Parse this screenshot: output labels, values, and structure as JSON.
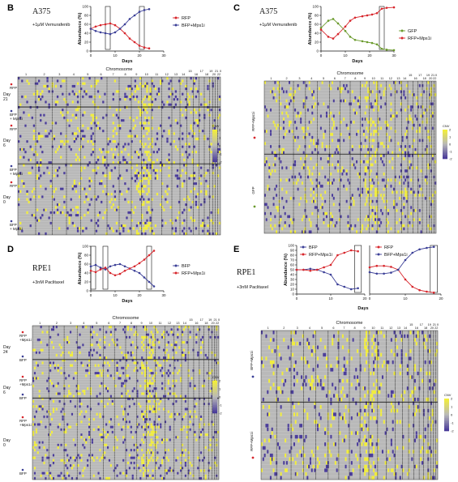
{
  "colors": {
    "red": "#d7262c",
    "blue": "#3b3f97",
    "green": "#6a9a2c",
    "heat_base": "#b9b9b9",
    "heat_high": "#f2ee3a",
    "heat_low": "#4a3c9a"
  },
  "chromosome_title": "Chromosome",
  "chromosome_labels": [
    "1",
    "2",
    "3",
    "4",
    "5",
    "6",
    "7",
    "8",
    "9",
    "10",
    "11",
    "12",
    "13",
    "14",
    "15",
    "16",
    "17",
    "18",
    "19",
    "20",
    "21",
    "22",
    "X"
  ],
  "colorbar": {
    "title": "CNV",
    "ticks": [
      "2",
      "1",
      "0",
      "-1",
      "-2"
    ]
  },
  "chart_data": [
    {
      "panel": "B",
      "type": "line",
      "cell_line": "A375",
      "treatment": "+1μM Vemurafenib",
      "xlabel": "Days",
      "ylabel": "Abundance (%)",
      "xlim": [
        0,
        30
      ],
      "ylim": [
        0,
        100
      ],
      "xticks": [
        "0",
        "10",
        "20",
        "30"
      ],
      "yticks": [
        "0",
        "20",
        "40",
        "60",
        "80",
        "100"
      ],
      "legend_position": "right",
      "series": [
        {
          "name": "RFP",
          "color": "#d7262c",
          "x": [
            0,
            2,
            4,
            6,
            8,
            10,
            12,
            14,
            16,
            18,
            20,
            22,
            24
          ],
          "y": [
            50,
            55,
            58,
            60,
            62,
            58,
            50,
            40,
            28,
            20,
            12,
            8,
            6
          ]
        },
        {
          "name": "BFP+Mps1i",
          "color": "#3b3f97",
          "x": [
            0,
            2,
            4,
            6,
            8,
            10,
            12,
            14,
            16,
            18,
            20,
            22,
            24
          ],
          "y": [
            50,
            45,
            42,
            40,
            38,
            42,
            50,
            60,
            72,
            80,
            88,
            92,
            94
          ]
        }
      ],
      "boxes": [
        {
          "x": [
            6,
            8
          ]
        },
        {
          "x": [
            20,
            22
          ]
        }
      ]
    },
    {
      "panel": "C",
      "type": "line",
      "cell_line": "A375",
      "treatment": "+1μM Vemurafenib",
      "xlabel": "Days",
      "ylabel": "Abundance (%)",
      "xlim": [
        0,
        30
      ],
      "ylim": [
        0,
        100
      ],
      "xticks": [
        "0",
        "10",
        "20",
        "30"
      ],
      "yticks": [
        "0",
        "20",
        "40",
        "60",
        "80",
        "100"
      ],
      "legend_position": "right",
      "series": [
        {
          "name": "GFP",
          "color": "#6a9a2c",
          "x": [
            0,
            3,
            5,
            7,
            10,
            12,
            14,
            17,
            19,
            21,
            23,
            25,
            27,
            30
          ],
          "y": [
            52,
            68,
            72,
            62,
            45,
            32,
            25,
            22,
            20,
            18,
            15,
            5,
            3,
            2
          ]
        },
        {
          "name": "RFP+Mps1i",
          "color": "#d7262c",
          "x": [
            0,
            3,
            5,
            7,
            10,
            12,
            14,
            17,
            19,
            21,
            23,
            25,
            27,
            30
          ],
          "y": [
            48,
            32,
            28,
            38,
            55,
            68,
            75,
            78,
            80,
            82,
            85,
            95,
            97,
            98
          ]
        }
      ],
      "boxes": [
        {
          "x": [
            24,
            26
          ]
        }
      ]
    },
    {
      "panel": "D",
      "type": "line",
      "cell_line": "RPE1",
      "treatment": "+3nM Paclitaxel",
      "xlabel": "Days",
      "ylabel": "Abundance (%)",
      "xlim": [
        0,
        30
      ],
      "ylim": [
        0,
        100
      ],
      "xticks": [
        "0",
        "10",
        "20",
        "30"
      ],
      "yticks": [
        "0",
        "20",
        "40",
        "60",
        "80",
        "100"
      ],
      "legend_position": "right",
      "series": [
        {
          "name": "BFP",
          "color": "#3b3f97",
          "x": [
            0,
            2,
            4,
            6,
            8,
            10,
            12,
            14,
            16,
            18,
            20,
            22,
            24,
            26
          ],
          "y": [
            55,
            58,
            52,
            48,
            55,
            58,
            60,
            55,
            50,
            45,
            40,
            30,
            20,
            10
          ]
        },
        {
          "name": "RFP+Mps1i",
          "color": "#d7262c",
          "x": [
            0,
            2,
            4,
            6,
            8,
            10,
            12,
            14,
            16,
            18,
            20,
            22,
            24,
            26
          ],
          "y": [
            45,
            42,
            48,
            52,
            40,
            35,
            38,
            45,
            50,
            55,
            62,
            70,
            80,
            90
          ]
        }
      ],
      "boxes": [
        {
          "x": [
            0,
            2
          ]
        },
        {
          "x": [
            5,
            7
          ]
        },
        {
          "x": [
            23,
            25
          ]
        }
      ]
    },
    {
      "panel": "E",
      "type": "line",
      "cell_line": "RPE1",
      "treatment": "+3nM Paclitaxel",
      "xlabel": "Days",
      "ylabel": "Abundance (%)",
      "xlim": [
        0,
        20
      ],
      "ylim": [
        0,
        100
      ],
      "xticks": [
        "0",
        "10",
        "20"
      ],
      "yticks": [
        "0",
        "10",
        "20",
        "30",
        "40",
        "50",
        "60",
        "70",
        "80",
        "90",
        "100"
      ],
      "legend_position": "top-left",
      "series": [
        {
          "name": "BFP",
          "color": "#3b3f97",
          "x": [
            0,
            2,
            4,
            6,
            8,
            10,
            12,
            14,
            16,
            18
          ],
          "y": [
            50,
            50,
            52,
            50,
            45,
            40,
            20,
            15,
            10,
            12
          ]
        },
        {
          "name": "RFP+Mps1i",
          "color": "#d7262c",
          "x": [
            0,
            2,
            4,
            6,
            8,
            10,
            12,
            14,
            16,
            18
          ],
          "y": [
            50,
            50,
            48,
            50,
            55,
            60,
            80,
            85,
            90,
            88
          ]
        }
      ],
      "boxes": [
        {
          "x": [
            17,
            19
          ]
        }
      ]
    },
    {
      "panel": "E",
      "type": "line",
      "xlim": [
        0,
        20
      ],
      "ylim": [
        0,
        100
      ],
      "xticks": [
        "0",
        "10",
        "20"
      ],
      "legend_position": "top-left",
      "series": [
        {
          "name": "RFP",
          "color": "#d7262c",
          "x": [
            0,
            2,
            4,
            6,
            8,
            10,
            12,
            14,
            16,
            18
          ],
          "y": [
            55,
            58,
            58,
            56,
            50,
            30,
            15,
            8,
            5,
            3
          ]
        },
        {
          "name": "BFP+Mps1i",
          "color": "#3b3f97",
          "x": [
            0,
            2,
            4,
            6,
            8,
            10,
            12,
            14,
            16,
            18
          ],
          "y": [
            45,
            42,
            42,
            44,
            50,
            70,
            85,
            92,
            95,
            97
          ]
        }
      ],
      "boxes": [
        {
          "x": [
            17,
            19
          ]
        }
      ]
    },
    {
      "panel": "B",
      "type": "heatmap",
      "groups": [
        {
          "day": "Day\n21",
          "rows": [
            {
              "label": "RFP",
              "dot": "#d7262c"
            },
            {
              "label": "BFP\n+ Mps1i",
              "dot": "#3b3f97"
            }
          ]
        },
        {
          "day": "Day\n6",
          "rows": [
            {
              "label": "RFP",
              "dot": "#d7262c"
            },
            {
              "label": "BFP\n+ Mps1i",
              "dot": "#3b3f97"
            }
          ]
        },
        {
          "day": "Day\n0",
          "rows": [
            {
              "label": "RFP",
              "dot": "#d7262c"
            },
            {
              "label": "BFP\n+ Mps1i",
              "dot": "#3b3f97"
            }
          ]
        }
      ]
    },
    {
      "panel": "C",
      "type": "heatmap",
      "groups": [
        {
          "day": "",
          "rows": [
            {
              "label": "RFP+Mps1i",
              "dot": "#d7262c"
            }
          ]
        },
        {
          "day": "",
          "rows": [
            {
              "label": "GFP",
              "dot": "#6a9a2c"
            }
          ]
        }
      ]
    },
    {
      "panel": "D",
      "type": "heatmap",
      "groups": [
        {
          "day": "Day\n24",
          "rows": [
            {
              "label": "RFP\n+Mps1i",
              "dot": "#d7262c"
            },
            {
              "label": "BFP",
              "dot": "#3b3f97"
            }
          ]
        },
        {
          "day": "Day\n6",
          "rows": [
            {
              "label": "RFP\n+Mps1i",
              "dot": "#d7262c"
            },
            {
              "label": "BFP",
              "dot": "#3b3f97"
            }
          ]
        },
        {
          "day": "Day\n0",
          "rows": [
            {
              "label": "RFP\n+Mps1i",
              "dot": "#d7262c"
            },
            {
              "label": "BFP",
              "dot": "#3b3f97"
            }
          ]
        }
      ]
    },
    {
      "panel": "E",
      "type": "heatmap",
      "groups": [
        {
          "day": "",
          "rows": [
            {
              "label": "BFP+Mps1i",
              "dot": "#3b3f97"
            }
          ]
        },
        {
          "day": "",
          "rows": [
            {
              "label": "RFP+Mps1i",
              "dot": "#d7262c"
            }
          ]
        }
      ]
    }
  ]
}
